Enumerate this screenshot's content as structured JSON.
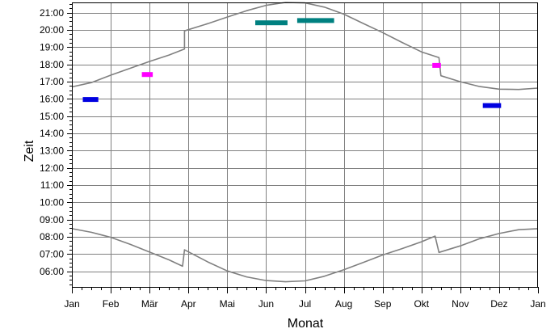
{
  "chart_data": {
    "type": "line",
    "xlabel": "Monat",
    "ylabel": "Zeit",
    "x_tick_labels": [
      "Jan",
      "Feb",
      "Mär",
      "Apr",
      "Mai",
      "Jun",
      "Jul",
      "Aug",
      "Sep",
      "Okt",
      "Nov",
      "Dez",
      "Jan"
    ],
    "y_tick_labels": [
      "06:00",
      "07:00",
      "08:00",
      "09:00",
      "10:00",
      "11:00",
      "12:00",
      "13:00",
      "14:00",
      "15:00",
      "16:00",
      "17:00",
      "18:00",
      "19:00",
      "20:00",
      "21:00"
    ],
    "xlim": [
      0,
      12
    ],
    "ylim": [
      5.1,
      21.6
    ],
    "grid": true,
    "colors": {
      "curve": "#808080",
      "teal": "#008080",
      "blue": "#0000e0",
      "magenta": "#ff00ff",
      "grid": "#808080",
      "axis": "#000000"
    },
    "series": [
      {
        "line_color": "curve",
        "points": [
          [
            0.0,
            16.7
          ],
          [
            0.5,
            16.95
          ],
          [
            1.0,
            17.38
          ],
          [
            1.5,
            17.78
          ],
          [
            2.0,
            18.18
          ],
          [
            2.5,
            18.55
          ],
          [
            2.9,
            18.9
          ],
          [
            2.9,
            19.95
          ],
          [
            3.5,
            20.37
          ],
          [
            4.0,
            20.75
          ],
          [
            4.5,
            21.12
          ],
          [
            5.0,
            21.43
          ],
          [
            5.5,
            21.6
          ],
          [
            6.0,
            21.57
          ],
          [
            6.5,
            21.33
          ],
          [
            7.0,
            20.92
          ],
          [
            7.5,
            20.38
          ],
          [
            8.0,
            19.85
          ],
          [
            8.5,
            19.28
          ],
          [
            9.0,
            18.73
          ],
          [
            9.45,
            18.4
          ],
          [
            9.5,
            17.35
          ],
          [
            10.0,
            17.0
          ],
          [
            10.5,
            16.72
          ],
          [
            11.0,
            16.57
          ],
          [
            11.5,
            16.55
          ],
          [
            12.0,
            16.63
          ]
        ]
      },
      {
        "line_color": "curve",
        "points": [
          [
            0.0,
            8.48
          ],
          [
            0.5,
            8.27
          ],
          [
            1.0,
            7.98
          ],
          [
            1.5,
            7.57
          ],
          [
            2.0,
            7.12
          ],
          [
            2.5,
            6.67
          ],
          [
            2.85,
            6.3
          ],
          [
            2.9,
            7.25
          ],
          [
            3.5,
            6.55
          ],
          [
            4.0,
            6.03
          ],
          [
            4.5,
            5.68
          ],
          [
            5.0,
            5.47
          ],
          [
            5.5,
            5.4
          ],
          [
            6.0,
            5.45
          ],
          [
            6.5,
            5.72
          ],
          [
            7.0,
            6.1
          ],
          [
            7.5,
            6.52
          ],
          [
            8.0,
            6.95
          ],
          [
            8.5,
            7.32
          ],
          [
            9.0,
            7.72
          ],
          [
            9.35,
            8.05
          ],
          [
            9.45,
            7.1
          ],
          [
            10.0,
            7.48
          ],
          [
            10.5,
            7.9
          ],
          [
            11.0,
            8.2
          ],
          [
            11.5,
            8.42
          ],
          [
            12.0,
            8.48
          ]
        ]
      }
    ],
    "clusters": [
      {
        "color": "blue",
        "x_start": 0.28,
        "x_end": 0.68,
        "y": 15.97
      },
      {
        "color": "blue",
        "x_start": 10.58,
        "x_end": 11.05,
        "y": 15.62
      },
      {
        "color": "magenta",
        "x_start": 1.8,
        "x_end": 2.08,
        "y": 17.42
      },
      {
        "color": "magenta",
        "x_start": 9.28,
        "x_end": 9.5,
        "y": 17.95
      },
      {
        "color": "teal",
        "x_start": 4.72,
        "x_end": 5.55,
        "y": 20.42
      },
      {
        "color": "teal",
        "x_start": 5.8,
        "x_end": 6.75,
        "y": 20.55
      }
    ]
  }
}
